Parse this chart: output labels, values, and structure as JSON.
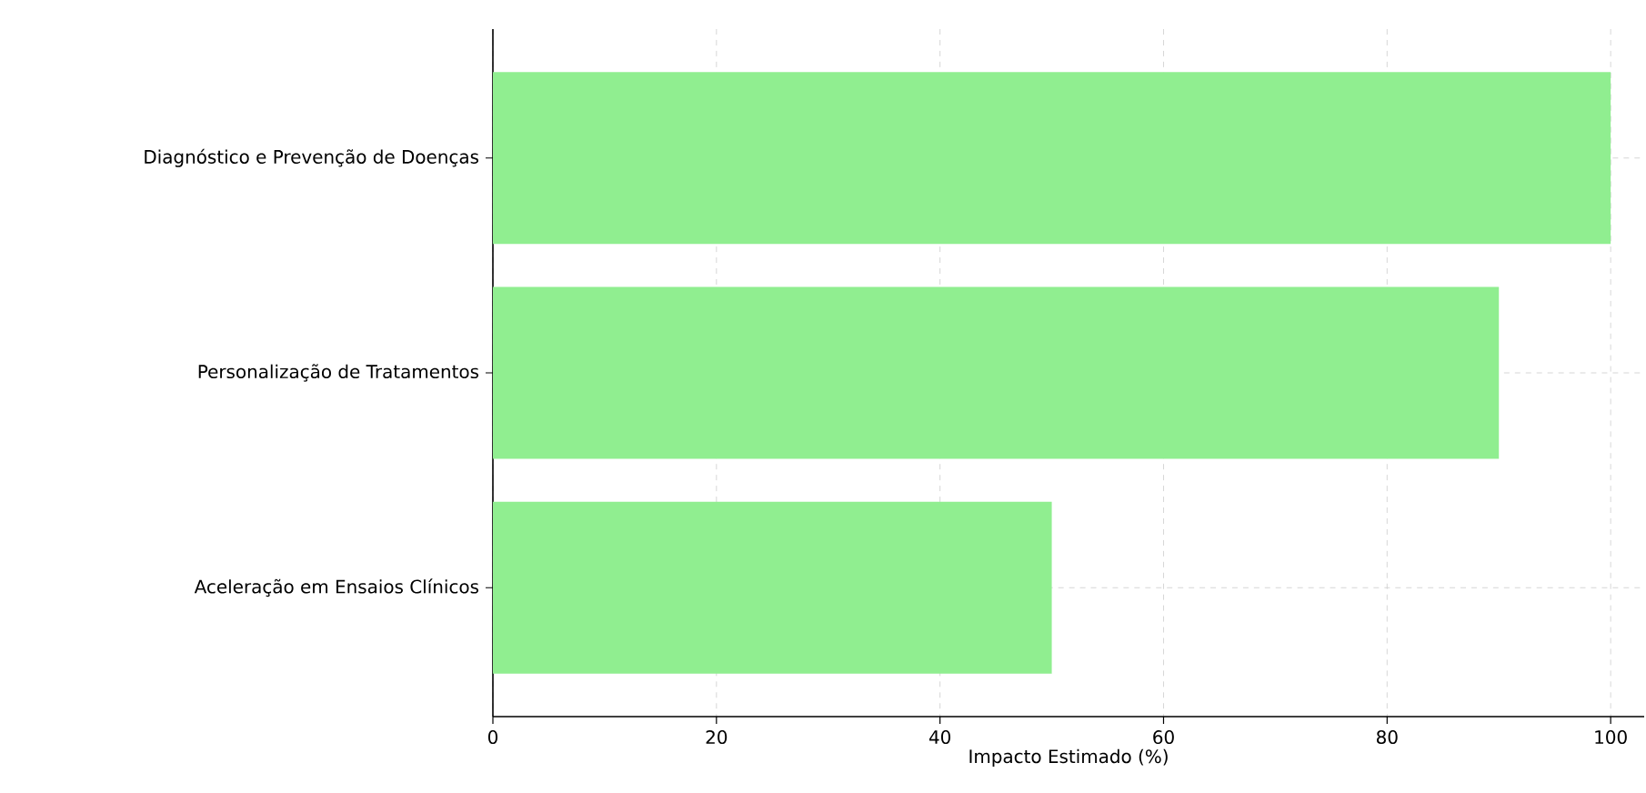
{
  "chart_data": {
    "type": "bar",
    "orientation": "horizontal",
    "xlabel": "Impacto Estimado (%)",
    "categories": [
      "Diagnóstico e Prevenção de Doenças",
      "Personalização de Tratamentos",
      "Aceleração em Ensaios Clínicos"
    ],
    "values": [
      100,
      90,
      50
    ],
    "color": "#90ee90",
    "xlim": [
      0,
      103
    ],
    "xticks": [
      0,
      20,
      40,
      60,
      80,
      100
    ],
    "grid": true
  }
}
